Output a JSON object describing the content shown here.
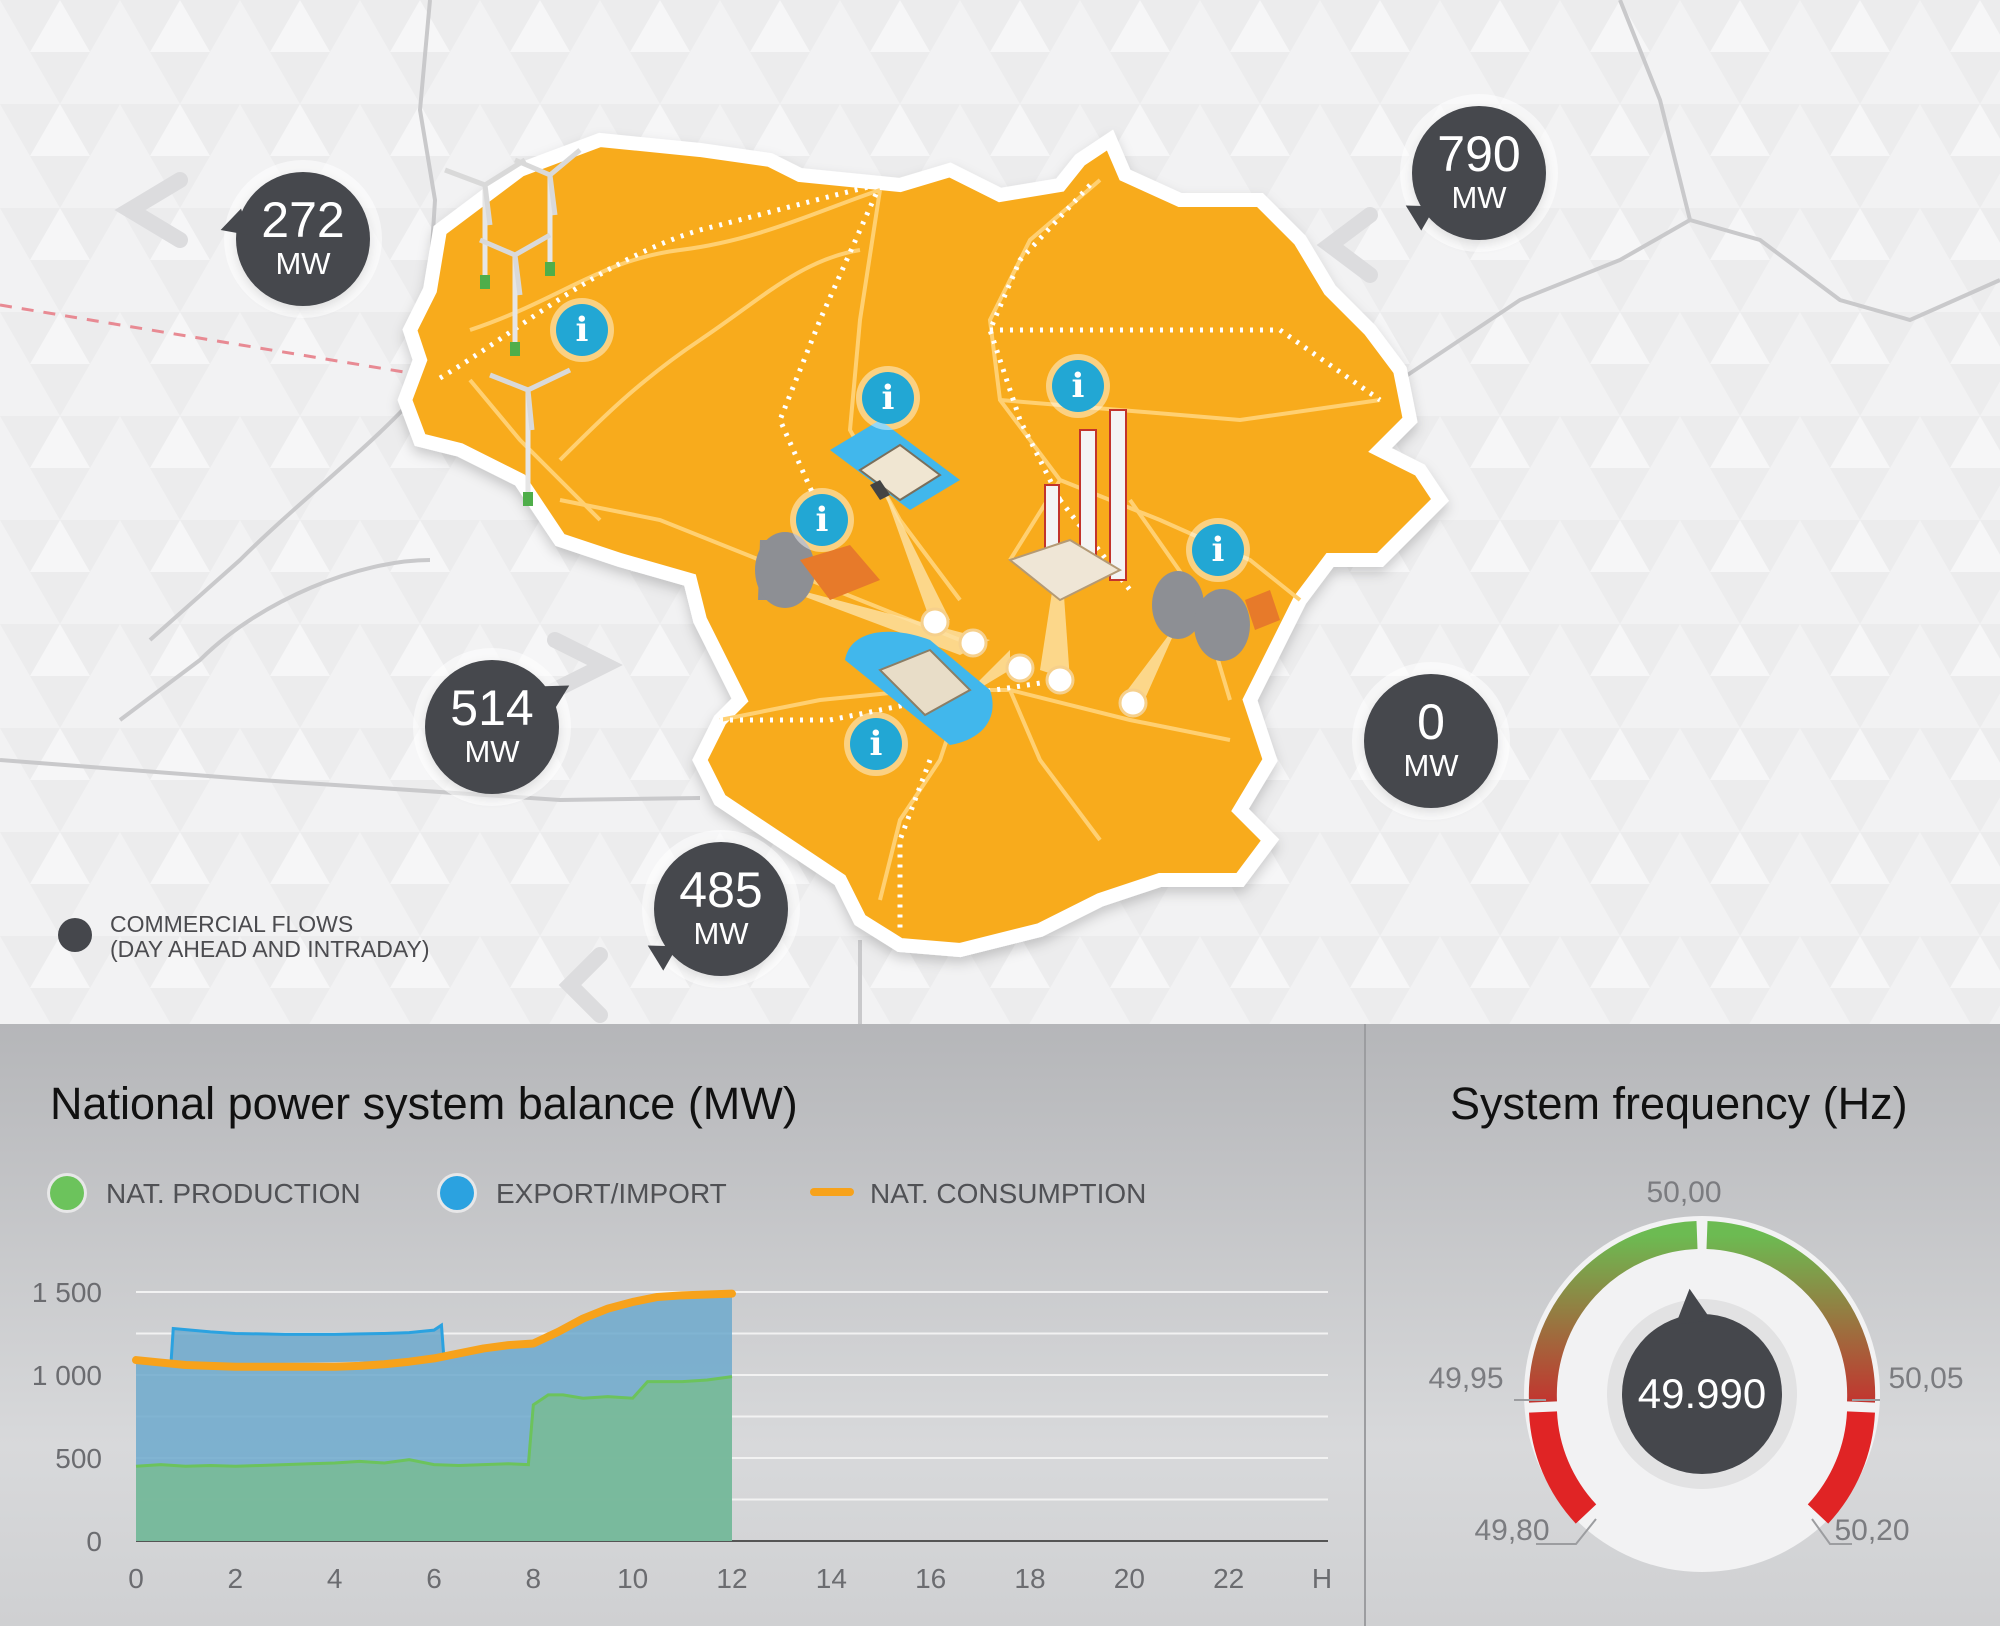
{
  "map": {
    "flows": [
      {
        "id": "flow-north-west",
        "value": "272",
        "unit": "MW"
      },
      {
        "id": "flow-north-east",
        "value": "790",
        "unit": "MW"
      },
      {
        "id": "flow-south-west",
        "value": "514",
        "unit": "MW"
      },
      {
        "id": "flow-east",
        "value": "0",
        "unit": "MW"
      },
      {
        "id": "flow-south",
        "value": "485",
        "unit": "MW"
      }
    ],
    "info_icon_glyph": "i",
    "legend": {
      "line1": "COMMERCIAL FLOWS",
      "line2": "(DAY AHEAD AND INTRADAY)"
    },
    "colors": {
      "country": "#f8ab1f",
      "info": "#22a7d4",
      "bubble": "#46484d"
    }
  },
  "balance_panel": {
    "title": "National power system balance (MW)",
    "legend": [
      {
        "label": "NAT. PRODUCTION",
        "color": "#6cc35c"
      },
      {
        "label": "EXPORT/IMPORT",
        "color": "#2ba2e0"
      },
      {
        "label": "NAT. CONSUMPTION",
        "color": "#f7a21b"
      }
    ]
  },
  "chart_data": {
    "type": "area",
    "xlabel": "H",
    "ylabel": "",
    "xlim": [
      0,
      24
    ],
    "ylim": [
      0,
      1500
    ],
    "x_ticks": [
      "0",
      "2",
      "4",
      "6",
      "8",
      "10",
      "12",
      "14",
      "16",
      "18",
      "20",
      "22",
      "H"
    ],
    "y_ticks": [
      "0",
      "500",
      "1 000",
      "1 500"
    ],
    "series": [
      {
        "name": "NAT. PRODUCTION",
        "type": "area",
        "color": "#6cc35c",
        "x": [
          0,
          0.5,
          1,
          1.5,
          2,
          2.5,
          3,
          3.5,
          4,
          4.5,
          5,
          5.5,
          6,
          6.5,
          7,
          7.5,
          7.9,
          8,
          8.3,
          8.6,
          9,
          9.5,
          10,
          10.3,
          10.6,
          11,
          11.5,
          12
        ],
        "y": [
          450,
          460,
          450,
          455,
          450,
          455,
          460,
          465,
          470,
          480,
          470,
          490,
          460,
          455,
          460,
          465,
          460,
          820,
          880,
          880,
          860,
          870,
          860,
          960,
          960,
          960,
          970,
          990
        ]
      },
      {
        "name": "EXPORT/IMPORT",
        "type": "area",
        "color": "#2ba2e0",
        "x": [
          0.7,
          0.75,
          1.5,
          2,
          3,
          4,
          5,
          5.5,
          6,
          6.15,
          6.2
        ],
        "y": [
          1050,
          1280,
          1260,
          1250,
          1245,
          1245,
          1250,
          1255,
          1270,
          1300,
          1100
        ]
      },
      {
        "name": "NAT. CONSUMPTION",
        "type": "line",
        "color": "#f7a21b",
        "x": [
          0,
          0.5,
          1,
          2,
          3,
          4,
          4.5,
          5,
          5.5,
          6,
          6.5,
          7,
          7.5,
          8,
          8.5,
          9,
          9.5,
          10,
          10.5,
          11,
          11.5,
          12
        ],
        "y": [
          1090,
          1075,
          1060,
          1050,
          1050,
          1050,
          1055,
          1065,
          1080,
          1100,
          1130,
          1160,
          1180,
          1190,
          1260,
          1340,
          1400,
          1440,
          1470,
          1480,
          1485,
          1490
        ]
      }
    ],
    "grid": true
  },
  "frequency_panel": {
    "title": "System frequency (Hz)",
    "value": "49.990",
    "scale_labels": {
      "min": "49,80",
      "low": "49,95",
      "mid": "50,00",
      "high": "50,05",
      "max": "50,20"
    },
    "gauge": {
      "min": 49.8,
      "max": 50.2,
      "value": 49.99
    }
  }
}
